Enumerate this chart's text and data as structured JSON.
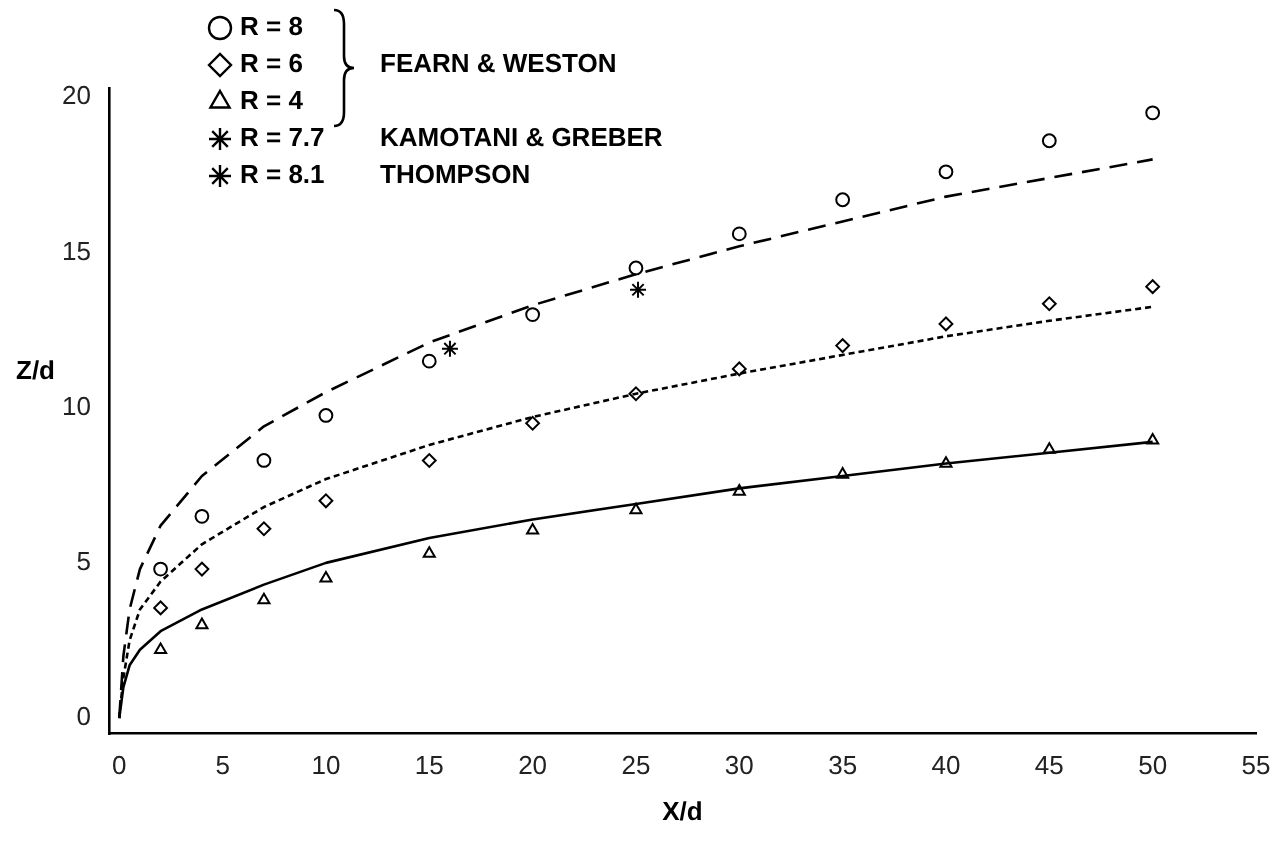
{
  "chart_data": {
    "type": "scatter",
    "xlabel": "X/d",
    "ylabel": "Z/d",
    "xlim": [
      -0.5,
      55
    ],
    "ylim": [
      -0.5,
      20.3
    ],
    "xticks": [
      0,
      5,
      10,
      15,
      20,
      25,
      30,
      35,
      40,
      45,
      50,
      55
    ],
    "yticks": [
      0,
      5,
      10,
      15,
      20
    ],
    "grid": false,
    "legend": "top left",
    "annotations": [
      "FEARN & WESTON",
      "KAMOTANI & GREBER",
      "THOMPSON"
    ],
    "series": [
      {
        "name": "R = 8",
        "color": "#000000",
        "marker": "circle",
        "x": [
          2,
          4,
          7,
          10,
          15,
          20,
          25,
          30,
          35,
          40,
          45,
          50
        ],
        "values": [
          4.8,
          6.5,
          8.3,
          9.75,
          11.5,
          13.0,
          14.5,
          15.6,
          16.7,
          17.6,
          18.6,
          19.5
        ]
      },
      {
        "name": "R = 6",
        "color": "#000000",
        "marker": "diamond",
        "x": [
          2,
          4,
          7,
          10,
          15,
          20,
          25,
          30,
          35,
          40,
          45,
          50
        ],
        "values": [
          3.55,
          4.8,
          6.1,
          7.0,
          8.3,
          9.5,
          10.45,
          11.25,
          12.0,
          12.7,
          13.35,
          13.9
        ]
      },
      {
        "name": "R = 4",
        "color": "#000000",
        "marker": "triangle",
        "x": [
          2,
          4,
          7,
          10,
          15,
          20,
          25,
          30,
          35,
          40,
          45,
          50
        ],
        "values": [
          2.2,
          3.0,
          3.8,
          4.5,
          5.3,
          6.05,
          6.7,
          7.3,
          7.85,
          8.2,
          8.65,
          8.95
        ]
      },
      {
        "name": "R = 7.7",
        "color": "#000000",
        "marker": "cross",
        "x": [
          16
        ],
        "values": [
          11.9
        ]
      },
      {
        "name": "R = 8.1",
        "color": "#000000",
        "marker": "cross",
        "x": [
          25.1
        ],
        "values": [
          13.8
        ]
      },
      {
        "type": "line",
        "color": "#000000",
        "line_style": "dashed",
        "marker": "none",
        "x": [
          0,
          0.2,
          0.5,
          1,
          2,
          4,
          7,
          10,
          15,
          20,
          25,
          30,
          35,
          40,
          45,
          50
        ],
        "values": [
          0,
          2.0,
          3.5,
          4.8,
          6.2,
          7.8,
          9.4,
          10.5,
          12.1,
          13.3,
          14.3,
          15.2,
          16.0,
          16.8,
          17.4,
          18.0
        ]
      },
      {
        "type": "line",
        "color": "#000000",
        "line_style": "dotted",
        "marker": "none",
        "x": [
          0,
          0.2,
          0.5,
          1,
          2,
          4,
          7,
          10,
          15,
          20,
          25,
          30,
          35,
          40,
          45,
          50
        ],
        "values": [
          0,
          1.3,
          2.5,
          3.5,
          4.4,
          5.6,
          6.8,
          7.7,
          8.8,
          9.7,
          10.45,
          11.1,
          11.7,
          12.3,
          12.8,
          13.25
        ]
      },
      {
        "type": "line",
        "color": "#000000",
        "line_style": "solid",
        "marker": "none",
        "x": [
          0,
          0.2,
          0.5,
          1,
          2,
          4,
          7,
          10,
          15,
          20,
          25,
          30,
          35,
          40,
          45,
          50
        ],
        "values": [
          0,
          1.0,
          1.7,
          2.2,
          2.8,
          3.5,
          4.3,
          5.0,
          5.8,
          6.4,
          6.9,
          7.4,
          7.8,
          8.2,
          8.55,
          8.9
        ]
      }
    ]
  }
}
